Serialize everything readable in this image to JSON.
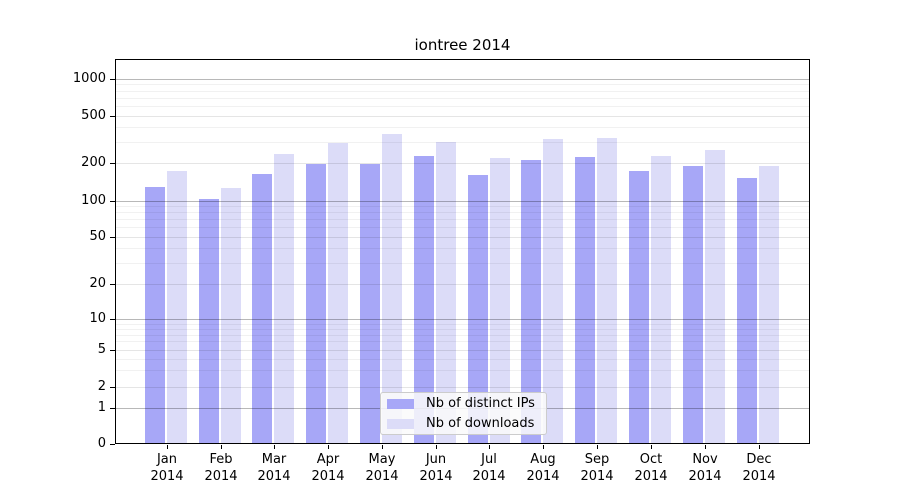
{
  "chart_data": {
    "type": "bar",
    "title": "iontree 2014",
    "x": {
      "months": [
        "Jan",
        "Feb",
        "Mar",
        "Apr",
        "May",
        "Jun",
        "Jul",
        "Aug",
        "Sep",
        "Oct",
        "Nov",
        "Dec"
      ],
      "year": "2014"
    },
    "series": [
      {
        "name": "Nb of distinct IPs",
        "color": "#a7a7f7",
        "values": [
          130,
          103,
          165,
          196,
          198,
          230,
          160,
          210,
          227,
          172,
          191,
          152
        ]
      },
      {
        "name": "Nb of downloads",
        "color": "#dcdcf8",
        "values": [
          173,
          127,
          240,
          296,
          350,
          300,
          220,
          318,
          327,
          229,
          256,
          190
        ]
      }
    ],
    "y_axis": {
      "scale": "symlog",
      "ticks": [
        0,
        1,
        2,
        5,
        10,
        20,
        50,
        100,
        200,
        500,
        1000
      ],
      "range": [
        0,
        1400
      ],
      "grid": "major-and-minor"
    },
    "legend": {
      "position": "lower-center"
    }
  }
}
